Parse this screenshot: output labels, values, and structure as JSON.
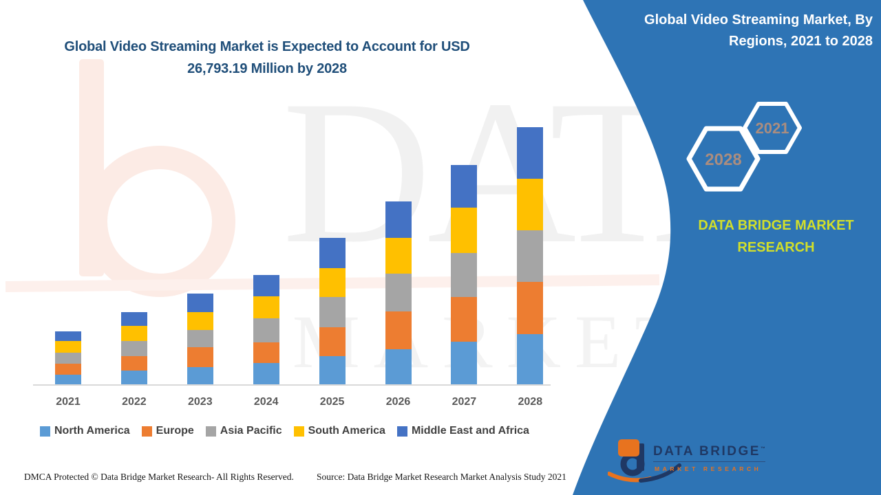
{
  "header": {
    "title_line1": "Global Video Streaming Market is Expected to Account for USD",
    "title_line2": "26,793.19 Million by 2028",
    "title_color": "#1f4e79"
  },
  "side_panel": {
    "title_line1": "Global Video Streaming Market, By",
    "title_line2": "Regions, 2021 to 2028",
    "badge_large": "2028",
    "badge_small": "2021",
    "brand_line1": "DATA BRIDGE MARKET",
    "brand_line2": "RESEARCH",
    "panel_color": "#2e74b5",
    "badge_text_color": "#ab8d7f",
    "brand_text_color": "#d2df2a"
  },
  "logo": {
    "name": "DATA BRIDGE",
    "tm": "™",
    "subtitle": "MARKET RESEARCH",
    "navy": "#1f3864",
    "orange": "#e8731f"
  },
  "watermark": {
    "text_line1": "DATA BRIDGE",
    "text_line2": "MARKET RESEARCH"
  },
  "footer": {
    "dmca": "DMCA Protected © Data Bridge Market Research- All Rights Reserved.",
    "source": "Source: Data Bridge Market Research Market Analysis Study 2021"
  },
  "chart_data": {
    "type": "bar",
    "stacked": true,
    "unit": "USD Million",
    "title": "Global Video Streaming Market is Expected to Account for USD 26,793.19 Million by 2028",
    "xlabel": "",
    "ylabel": "",
    "grid": false,
    "legend_position": "bottom",
    "ylim": [
      0,
      28000
    ],
    "total_2028": 26793.19,
    "categories": [
      "2021",
      "2022",
      "2023",
      "2024",
      "2025",
      "2026",
      "2027",
      "2028"
    ],
    "series": [
      {
        "name": "North America",
        "color": "#5b9bd5",
        "values": [
          1075,
          1500,
          1860,
          2290,
          3000,
          3715,
          4500,
          5290
        ]
      },
      {
        "name": "Europe",
        "color": "#ed7d31",
        "values": [
          1140,
          1500,
          2070,
          2140,
          3000,
          3930,
          4645,
          5430
        ]
      },
      {
        "name": "Asia Pacific",
        "color": "#a5a5a5",
        "values": [
          1140,
          1570,
          1790,
          2500,
          3140,
          3930,
          4570,
          5360
        ]
      },
      {
        "name": "South America",
        "color": "#ffc000",
        "values": [
          1215,
          1570,
          1860,
          2290,
          3000,
          3715,
          4715,
          5360
        ]
      },
      {
        "name": "Middle East and Africa",
        "color": "#4472c4",
        "values": [
          1000,
          1430,
          1930,
          2210,
          3140,
          3790,
          4430,
          5353.19
        ]
      }
    ],
    "totals": [
      5570,
      7570,
      9510,
      11430,
      15280,
      19080,
      22860,
      26793.19
    ]
  }
}
